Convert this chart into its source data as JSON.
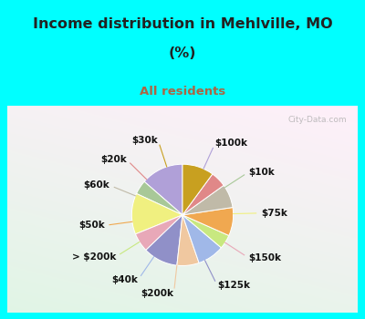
{
  "title_line1": "Income distribution in Mehlville, MO",
  "title_line2": "(%)",
  "subtitle": "All residents",
  "title_color": "#222222",
  "subtitle_color": "#aa6644",
  "bg_top": "#00ffff",
  "bg_chart_tl": "#e8f5f0",
  "bg_chart_br": "#c8ead8",
  "watermark": "City-Data.com",
  "labels": [
    "$100k",
    "$10k",
    "$75k",
    "$150k",
    "$125k",
    "$200k",
    "$40k",
    "> $200k",
    "$50k",
    "$60k",
    "$20k",
    "$30k"
  ],
  "values": [
    13.5,
    4.5,
    13.0,
    6.0,
    11.0,
    7.0,
    8.5,
    4.5,
    9.0,
    7.5,
    5.0,
    10.0
  ],
  "colors": [
    "#b0a0d8",
    "#a8c898",
    "#f0f080",
    "#e8a8b8",
    "#9090c8",
    "#f0c8a0",
    "#a0b8e8",
    "#c8e880",
    "#f0a850",
    "#c0baa8",
    "#e08888",
    "#c8a020"
  ],
  "startangle": 90,
  "label_fontsize": 7.5,
  "title_fontsize": 11.5,
  "subtitle_fontsize": 9.5
}
